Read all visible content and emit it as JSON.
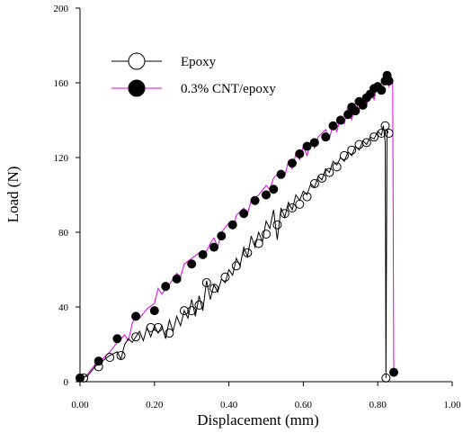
{
  "chart_data": {
    "type": "line",
    "title": "",
    "xlabel": "Displacement (mm)",
    "ylabel": "Load (N)",
    "xlim": [
      0,
      1.0
    ],
    "ylim": [
      0,
      200
    ],
    "xticks": [
      "0.00",
      "0.20",
      "0.40",
      "0.60",
      "0.80",
      "1.00"
    ],
    "yticks": [
      "0",
      "40",
      "80",
      "120",
      "160",
      "200"
    ],
    "grid": false,
    "legend": "top-left",
    "series": [
      {
        "name": "Epoxy",
        "color": "#000000",
        "marker": "open-circle",
        "line": [
          [
            0.0,
            2
          ],
          [
            0.02,
            3
          ],
          [
            0.04,
            8
          ],
          [
            0.06,
            11
          ],
          [
            0.08,
            14
          ],
          [
            0.1,
            16
          ],
          [
            0.11,
            12
          ],
          [
            0.12,
            20
          ],
          [
            0.13,
            23
          ],
          [
            0.14,
            21
          ],
          [
            0.16,
            27
          ],
          [
            0.17,
            22
          ],
          [
            0.18,
            29
          ],
          [
            0.19,
            24
          ],
          [
            0.2,
            30
          ],
          [
            0.21,
            26
          ],
          [
            0.22,
            30
          ],
          [
            0.23,
            23
          ],
          [
            0.24,
            33
          ],
          [
            0.25,
            27
          ],
          [
            0.26,
            35
          ],
          [
            0.27,
            30
          ],
          [
            0.28,
            38
          ],
          [
            0.29,
            34
          ],
          [
            0.3,
            44
          ],
          [
            0.31,
            35
          ],
          [
            0.32,
            46
          ],
          [
            0.33,
            38
          ],
          [
            0.34,
            54
          ],
          [
            0.35,
            44
          ],
          [
            0.36,
            52
          ],
          [
            0.37,
            48
          ],
          [
            0.38,
            55
          ],
          [
            0.39,
            53
          ],
          [
            0.4,
            60
          ],
          [
            0.41,
            57
          ],
          [
            0.42,
            66
          ],
          [
            0.43,
            62
          ],
          [
            0.44,
            72
          ],
          [
            0.45,
            67
          ],
          [
            0.46,
            78
          ],
          [
            0.47,
            72
          ],
          [
            0.48,
            80
          ],
          [
            0.49,
            75
          ],
          [
            0.5,
            86
          ],
          [
            0.51,
            82
          ],
          [
            0.52,
            92
          ],
          [
            0.53,
            76
          ],
          [
            0.54,
            93
          ],
          [
            0.55,
            88
          ],
          [
            0.56,
            96
          ],
          [
            0.57,
            92
          ],
          [
            0.58,
            100
          ],
          [
            0.59,
            97
          ],
          [
            0.6,
            102
          ],
          [
            0.61,
            100
          ],
          [
            0.62,
            106
          ],
          [
            0.63,
            104
          ],
          [
            0.64,
            110
          ],
          [
            0.65,
            108
          ],
          [
            0.66,
            114
          ],
          [
            0.67,
            112
          ],
          [
            0.68,
            118
          ],
          [
            0.69,
            116
          ],
          [
            0.7,
            120
          ],
          [
            0.71,
            118
          ],
          [
            0.72,
            123
          ],
          [
            0.73,
            121
          ],
          [
            0.74,
            126
          ],
          [
            0.75,
            124
          ],
          [
            0.76,
            129
          ],
          [
            0.77,
            127
          ],
          [
            0.78,
            131
          ],
          [
            0.79,
            130
          ],
          [
            0.8,
            134
          ],
          [
            0.81,
            132
          ],
          [
            0.815,
            137
          ],
          [
            0.82,
            128
          ],
          [
            0.822,
            2
          ],
          [
            0.825,
            135
          ],
          [
            0.828,
            133
          ]
        ],
        "markers": [
          [
            0.01,
            2
          ],
          [
            0.05,
            8
          ],
          [
            0.08,
            13
          ],
          [
            0.11,
            14
          ],
          [
            0.15,
            24
          ],
          [
            0.19,
            29
          ],
          [
            0.21,
            29
          ],
          [
            0.24,
            26
          ],
          [
            0.28,
            38
          ],
          [
            0.3,
            38
          ],
          [
            0.32,
            41
          ],
          [
            0.34,
            53
          ],
          [
            0.36,
            50
          ],
          [
            0.39,
            56
          ],
          [
            0.42,
            62
          ],
          [
            0.45,
            69
          ],
          [
            0.48,
            74
          ],
          [
            0.5,
            79
          ],
          [
            0.53,
            84
          ],
          [
            0.55,
            90
          ],
          [
            0.57,
            93
          ],
          [
            0.59,
            95
          ],
          [
            0.61,
            99
          ],
          [
            0.63,
            106
          ],
          [
            0.65,
            109
          ],
          [
            0.67,
            112
          ],
          [
            0.69,
            115
          ],
          [
            0.71,
            121
          ],
          [
            0.73,
            124
          ],
          [
            0.75,
            127
          ],
          [
            0.77,
            128
          ],
          [
            0.79,
            131
          ],
          [
            0.81,
            133
          ],
          [
            0.82,
            137
          ],
          [
            0.822,
            2
          ],
          [
            0.83,
            133
          ]
        ]
      },
      {
        "name": "0.3% CNT/epoxy",
        "color": "#e000e0",
        "marker": "filled-circle",
        "line": [
          [
            0.0,
            1
          ],
          [
            0.02,
            4
          ],
          [
            0.04,
            9
          ],
          [
            0.06,
            12
          ],
          [
            0.08,
            16
          ],
          [
            0.1,
            21
          ],
          [
            0.12,
            25
          ],
          [
            0.13,
            22
          ],
          [
            0.14,
            31
          ],
          [
            0.15,
            36
          ],
          [
            0.16,
            34
          ],
          [
            0.18,
            39
          ],
          [
            0.2,
            42
          ],
          [
            0.21,
            50
          ],
          [
            0.22,
            47
          ],
          [
            0.24,
            52
          ],
          [
            0.26,
            58
          ],
          [
            0.27,
            56
          ],
          [
            0.28,
            63
          ],
          [
            0.3,
            66
          ],
          [
            0.32,
            69
          ],
          [
            0.34,
            70
          ],
          [
            0.35,
            74
          ],
          [
            0.36,
            77
          ],
          [
            0.37,
            72
          ],
          [
            0.38,
            80
          ],
          [
            0.4,
            85
          ],
          [
            0.41,
            82
          ],
          [
            0.42,
            89
          ],
          [
            0.44,
            93
          ],
          [
            0.45,
            90
          ],
          [
            0.46,
            97
          ],
          [
            0.48,
            100
          ],
          [
            0.5,
            105
          ],
          [
            0.51,
            103
          ],
          [
            0.52,
            109
          ],
          [
            0.54,
            113
          ],
          [
            0.55,
            110
          ],
          [
            0.56,
            118
          ],
          [
            0.57,
            114
          ],
          [
            0.58,
            122
          ],
          [
            0.59,
            119
          ],
          [
            0.6,
            126
          ],
          [
            0.61,
            121
          ],
          [
            0.62,
            129
          ],
          [
            0.63,
            125
          ],
          [
            0.64,
            131
          ],
          [
            0.66,
            135
          ],
          [
            0.67,
            130
          ],
          [
            0.68,
            138
          ],
          [
            0.69,
            134
          ],
          [
            0.7,
            142
          ],
          [
            0.71,
            138
          ],
          [
            0.72,
            147
          ],
          [
            0.73,
            140
          ],
          [
            0.74,
            150
          ],
          [
            0.75,
            145
          ],
          [
            0.76,
            153
          ],
          [
            0.77,
            148
          ],
          [
            0.78,
            156
          ],
          [
            0.79,
            151
          ],
          [
            0.8,
            160
          ],
          [
            0.81,
            156
          ],
          [
            0.82,
            162
          ],
          [
            0.83,
            158
          ],
          [
            0.835,
            164
          ],
          [
            0.84,
            160
          ],
          [
            0.843,
            5
          ]
        ],
        "markers": [
          [
            0.0,
            2
          ],
          [
            0.05,
            11
          ],
          [
            0.1,
            23
          ],
          [
            0.15,
            35
          ],
          [
            0.2,
            38
          ],
          [
            0.23,
            51
          ],
          [
            0.26,
            55
          ],
          [
            0.3,
            63
          ],
          [
            0.33,
            68
          ],
          [
            0.36,
            72
          ],
          [
            0.38,
            78
          ],
          [
            0.41,
            84
          ],
          [
            0.44,
            90
          ],
          [
            0.47,
            97
          ],
          [
            0.5,
            100
          ],
          [
            0.52,
            103
          ],
          [
            0.54,
            111
          ],
          [
            0.57,
            117
          ],
          [
            0.59,
            122
          ],
          [
            0.61,
            126
          ],
          [
            0.63,
            128
          ],
          [
            0.66,
            131
          ],
          [
            0.68,
            137
          ],
          [
            0.7,
            140
          ],
          [
            0.72,
            143
          ],
          [
            0.73,
            147
          ],
          [
            0.74,
            145
          ],
          [
            0.75,
            150
          ],
          [
            0.76,
            148
          ],
          [
            0.77,
            152
          ],
          [
            0.78,
            154
          ],
          [
            0.79,
            157
          ],
          [
            0.8,
            158
          ],
          [
            0.81,
            156
          ],
          [
            0.82,
            161
          ],
          [
            0.825,
            164
          ],
          [
            0.83,
            161
          ],
          [
            0.843,
            5
          ]
        ]
      }
    ]
  }
}
